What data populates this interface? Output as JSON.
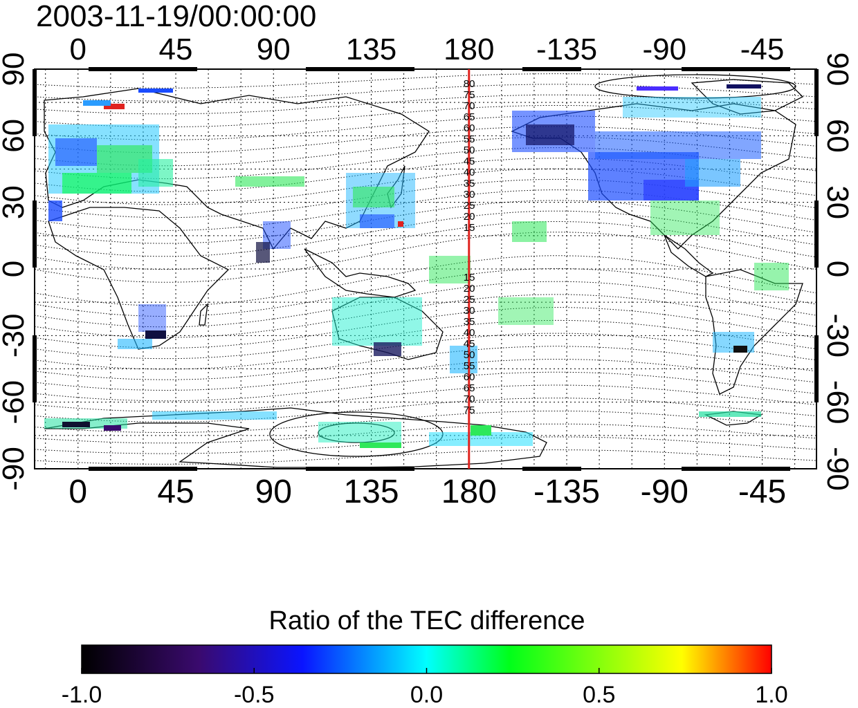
{
  "title": "2003-11-19/00:00:00",
  "colorbar_title": "Ratio of the TEC difference",
  "colors": {
    "meridian": "#e0231f",
    "coast": "#000000"
  },
  "chart_data": {
    "type": "heatmap",
    "map_projection": "equirectangular",
    "x_ticks_top": [
      "0",
      "45",
      "90",
      "135",
      "180",
      "-135",
      "-90",
      "-45"
    ],
    "x_ticks_bottom": [
      "0",
      "45",
      "90",
      "135",
      "180",
      "-135",
      "-90",
      "-45"
    ],
    "y_ticks_left": [
      "90",
      "60",
      "30",
      "0",
      "-30",
      "-60",
      "-90"
    ],
    "y_ticks_right": [
      "90",
      "60",
      "30",
      "0",
      "-30",
      "-60",
      "-90"
    ],
    "highlight_meridian": 180,
    "contour_labels_north": [
      "80",
      "75",
      "70",
      "65",
      "60",
      "55",
      "50",
      "45",
      "40",
      "35",
      "30",
      "25",
      "20",
      "15"
    ],
    "contour_labels_south": [
      "15",
      "20",
      "25",
      "30",
      "35",
      "40",
      "45",
      "50",
      "55",
      "60",
      "65",
      "70",
      "75"
    ],
    "colorbar": {
      "min": -1.0,
      "max": 1.0,
      "ticks": [
        "-1.0",
        "-0.5",
        "0.0",
        "0.5",
        "1.0"
      ],
      "colormap": [
        "#000000",
        "#3a0a6e",
        "#0a14ff",
        "#00ffff",
        "#00ff1a",
        "#ffff00",
        "#ff0000"
      ]
    }
  }
}
